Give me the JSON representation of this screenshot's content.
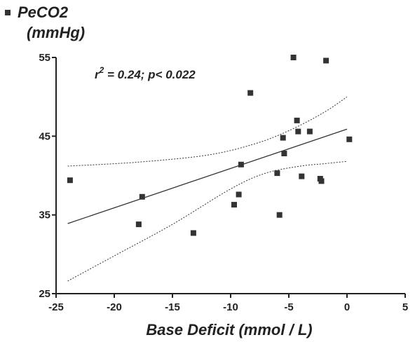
{
  "chart_data": {
    "type": "scatter",
    "ylabel_line1": "PeCO2",
    "ylabel_line2": "(mmHg)",
    "xlabel": "Base Deficit (mmol / L)",
    "annotation": {
      "r_symbol": "r",
      "exponent": "2",
      "rest": " = 0.24; p< 0.022"
    },
    "xlim": [
      -25,
      5
    ],
    "ylim": [
      25,
      55
    ],
    "x_ticks": [
      -25,
      -20,
      -15,
      -10,
      -5,
      0,
      5
    ],
    "x_tick_labels": [
      "-25",
      "-20",
      "-15",
      "-10",
      "-5",
      "0",
      "5"
    ],
    "y_ticks": [
      25,
      35,
      45,
      55
    ],
    "y_tick_labels": [
      "25",
      "35",
      "45",
      "55"
    ],
    "series": [
      {
        "marker": "square",
        "points": [
          {
            "x": -23.8,
            "y": 39.4
          },
          {
            "x": -17.9,
            "y": 33.8
          },
          {
            "x": -17.6,
            "y": 37.3
          },
          {
            "x": -13.2,
            "y": 32.7
          },
          {
            "x": -9.7,
            "y": 36.3
          },
          {
            "x": -9.3,
            "y": 37.6
          },
          {
            "x": -9.1,
            "y": 41.4
          },
          {
            "x": -8.3,
            "y": 50.5
          },
          {
            "x": -6.0,
            "y": 40.3
          },
          {
            "x": -5.8,
            "y": 35.0
          },
          {
            "x": -5.5,
            "y": 44.8
          },
          {
            "x": -5.4,
            "y": 42.8
          },
          {
            "x": -4.6,
            "y": 55.0
          },
          {
            "x": -4.3,
            "y": 47.0
          },
          {
            "x": -4.2,
            "y": 45.6
          },
          {
            "x": -3.9,
            "y": 39.9
          },
          {
            "x": -3.2,
            "y": 45.6
          },
          {
            "x": -2.3,
            "y": 39.6
          },
          {
            "x": -2.2,
            "y": 39.3
          },
          {
            "x": -1.8,
            "y": 54.6
          },
          {
            "x": 0.2,
            "y": 44.6
          }
        ]
      }
    ],
    "regression_line": [
      [
        -24.0,
        33.9
      ],
      [
        0.0,
        45.9
      ]
    ],
    "ci_upper": [
      [
        -24.0,
        41.2
      ],
      [
        -18,
        41.7
      ],
      [
        -12,
        42.6
      ],
      [
        -8,
        44.0
      ],
      [
        -5,
        45.7
      ],
      [
        -2,
        48.0
      ],
      [
        0,
        50.0
      ]
    ],
    "ci_lower": [
      [
        -24.0,
        26.6
      ],
      [
        -20,
        29.8
      ],
      [
        -15,
        33.8
      ],
      [
        -10,
        38.3
      ],
      [
        -7,
        40.3
      ],
      [
        -4,
        41.2
      ],
      [
        -2,
        41.5
      ],
      [
        0,
        41.8
      ]
    ],
    "grid": false,
    "legend": "top-left",
    "colors": {
      "marker": "#333333",
      "line": "#333333",
      "axis": "#222222"
    }
  }
}
